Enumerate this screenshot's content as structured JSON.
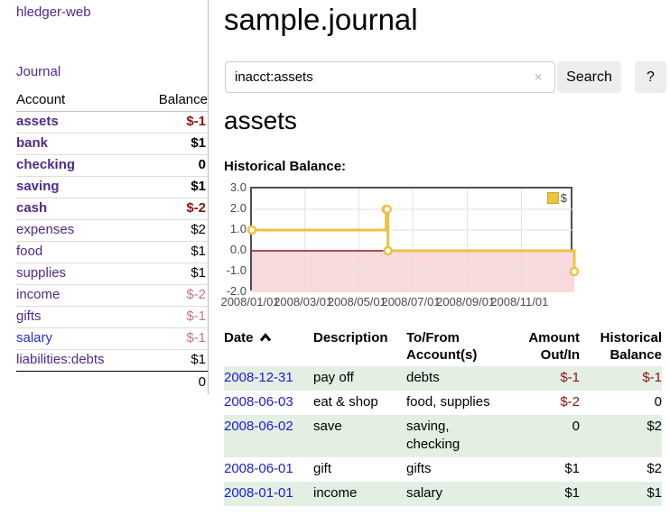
{
  "sidebar": {
    "app_title": "hledger-web",
    "nav": [
      {
        "label": "Journal"
      }
    ],
    "table": {
      "headers": [
        "Account",
        "Balance"
      ],
      "accounts": [
        {
          "name": "assets",
          "indent": 0,
          "bold": true,
          "balance": "$-1"
        },
        {
          "name": "bank",
          "indent": 1,
          "bold": true,
          "balance": "$1"
        },
        {
          "name": "checking",
          "indent": 2,
          "bold": true,
          "balance": "0"
        },
        {
          "name": "saving",
          "indent": 2,
          "bold": true,
          "balance": "$1"
        },
        {
          "name": "cash",
          "indent": 1,
          "bold": true,
          "balance": "$-2"
        },
        {
          "name": "expenses",
          "indent": 0,
          "bold": false,
          "balance": "$2"
        },
        {
          "name": "food",
          "indent": 1,
          "bold": false,
          "balance": "$1"
        },
        {
          "name": "supplies",
          "indent": 1,
          "bold": false,
          "balance": "$1"
        },
        {
          "name": "income",
          "indent": 0,
          "bold": false,
          "balance": "$-2"
        },
        {
          "name": "gifts",
          "indent": 1,
          "bold": false,
          "balance": "$-1"
        },
        {
          "name": "salary",
          "indent": 1,
          "bold": false,
          "balance": "$-1",
          "unvisited": true
        },
        {
          "name": "liabilities:debts",
          "indent": 0,
          "bold": false,
          "balance": "$1"
        }
      ],
      "total": "0"
    }
  },
  "header": {
    "title": "sample.journal"
  },
  "search": {
    "value": "inacct:assets",
    "placeholder": "",
    "clear_icon": "×",
    "button": "Search",
    "help_button": "?"
  },
  "account_page": {
    "title": "assets",
    "chart_label": "Historical Balance:"
  },
  "chart_data": {
    "type": "line",
    "step": true,
    "title": "Historical Balance",
    "series": [
      {
        "name": "$",
        "color": "#edc240",
        "points": [
          [
            "2008/01/01",
            1
          ],
          [
            "2008/06/01",
            2
          ],
          [
            "2008/06/02",
            2
          ],
          [
            "2008/06/03",
            0
          ],
          [
            "2008/12/31",
            -1
          ]
        ]
      }
    ],
    "xrange": [
      "2008/01/01",
      "2008/12/31"
    ],
    "ylim": [
      -2,
      3
    ],
    "yticks": [
      "3.0",
      "2.0",
      "1.0",
      "0.0",
      "-1.0",
      "-2.0"
    ],
    "xticks": [
      "2008/01/01",
      "2008/03/01",
      "2008/05/01",
      "2008/07/01",
      "2008/09/01",
      "2008/11/01"
    ],
    "legend": {
      "label": "$",
      "position": "top-right",
      "swatch_color": "#edc240"
    },
    "grid": true,
    "gridline_color": "#e0e0e0",
    "negative_region_color": "#f9dadc",
    "zero_line_color": "#8b1a1a"
  },
  "register": {
    "columns": [
      {
        "label": "Date",
        "sort": "asc",
        "sort_icon": "caret-up",
        "align": "left"
      },
      {
        "label": "Description",
        "align": "left"
      },
      {
        "label": "To/From Account(s)",
        "align": "left"
      },
      {
        "label": "Amount Out/In",
        "align": "right"
      },
      {
        "label": "Historical Balance",
        "align": "right"
      }
    ],
    "rows": [
      {
        "date": "2008-12-31",
        "description": "pay off",
        "accounts": "debts",
        "amount": "$-1",
        "balance": "$-1"
      },
      {
        "date": "2008-06-03",
        "description": "eat & shop",
        "accounts": "food, supplies",
        "amount": "$-2",
        "balance": "0"
      },
      {
        "date": "2008-06-02",
        "description": "save",
        "accounts": "saving, checking",
        "amount": "0",
        "balance": "$2"
      },
      {
        "date": "2008-06-01",
        "description": "gift",
        "accounts": "gifts",
        "amount": "$1",
        "balance": "$2"
      },
      {
        "date": "2008-01-01",
        "description": "income",
        "accounts": "salary",
        "amount": "$1",
        "balance": "$1"
      }
    ]
  }
}
